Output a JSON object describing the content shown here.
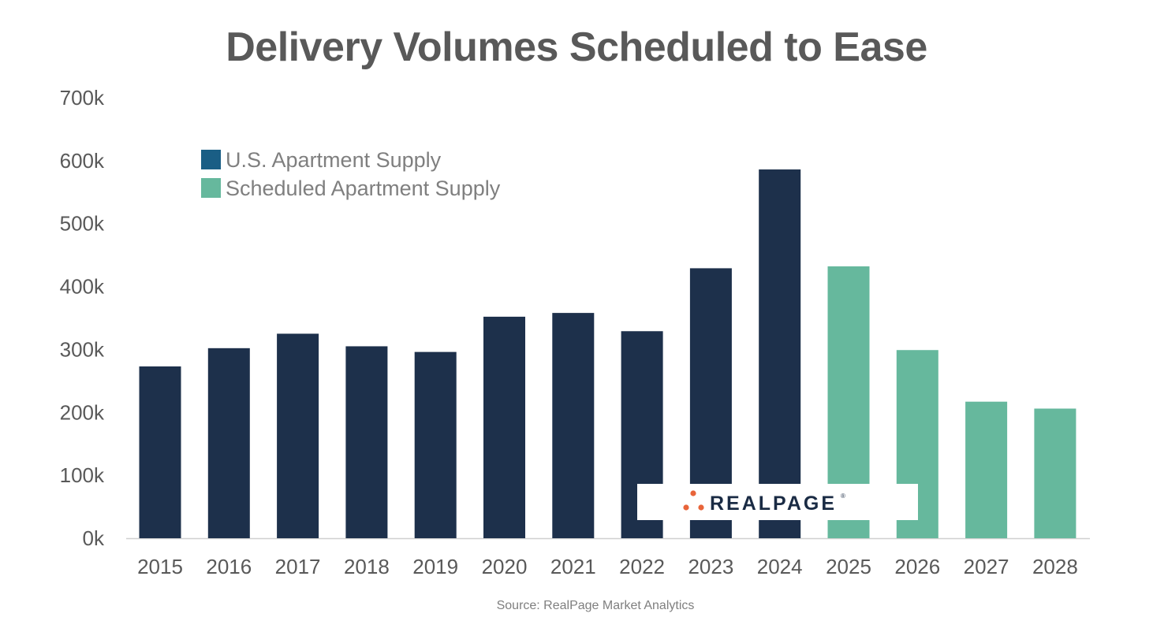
{
  "chart_data": {
    "type": "bar",
    "title": "Delivery Volumes Scheduled to Ease",
    "source": "Source: RealPage Market Analytics",
    "categories": [
      "2015",
      "2016",
      "2017",
      "2018",
      "2019",
      "2020",
      "2021",
      "2022",
      "2023",
      "2024",
      "2025",
      "2026",
      "2027",
      "2028"
    ],
    "series": [
      {
        "name": "U.S. Apartment Supply",
        "color": "#1d304b",
        "values": [
          273000,
          302000,
          325000,
          305000,
          296000,
          352000,
          358000,
          329000,
          429000,
          586000,
          null,
          null,
          null,
          null
        ]
      },
      {
        "name": "Scheduled Apartment Supply",
        "color": "#66b89d",
        "values": [
          null,
          null,
          null,
          null,
          null,
          null,
          null,
          null,
          null,
          null,
          432000,
          299000,
          217000,
          206000
        ]
      }
    ],
    "legend_colors": [
      "#1a5e85",
      "#66b89d"
    ],
    "yticks": [
      "0k",
      "100k",
      "200k",
      "300k",
      "400k",
      "500k",
      "600k",
      "700k"
    ],
    "ylim": [
      0,
      700000
    ],
    "xlabel": "",
    "ylabel": "",
    "grid": false,
    "legend_position": "top-left"
  },
  "logo": {
    "text": "REALPAGE",
    "mark": "®"
  }
}
